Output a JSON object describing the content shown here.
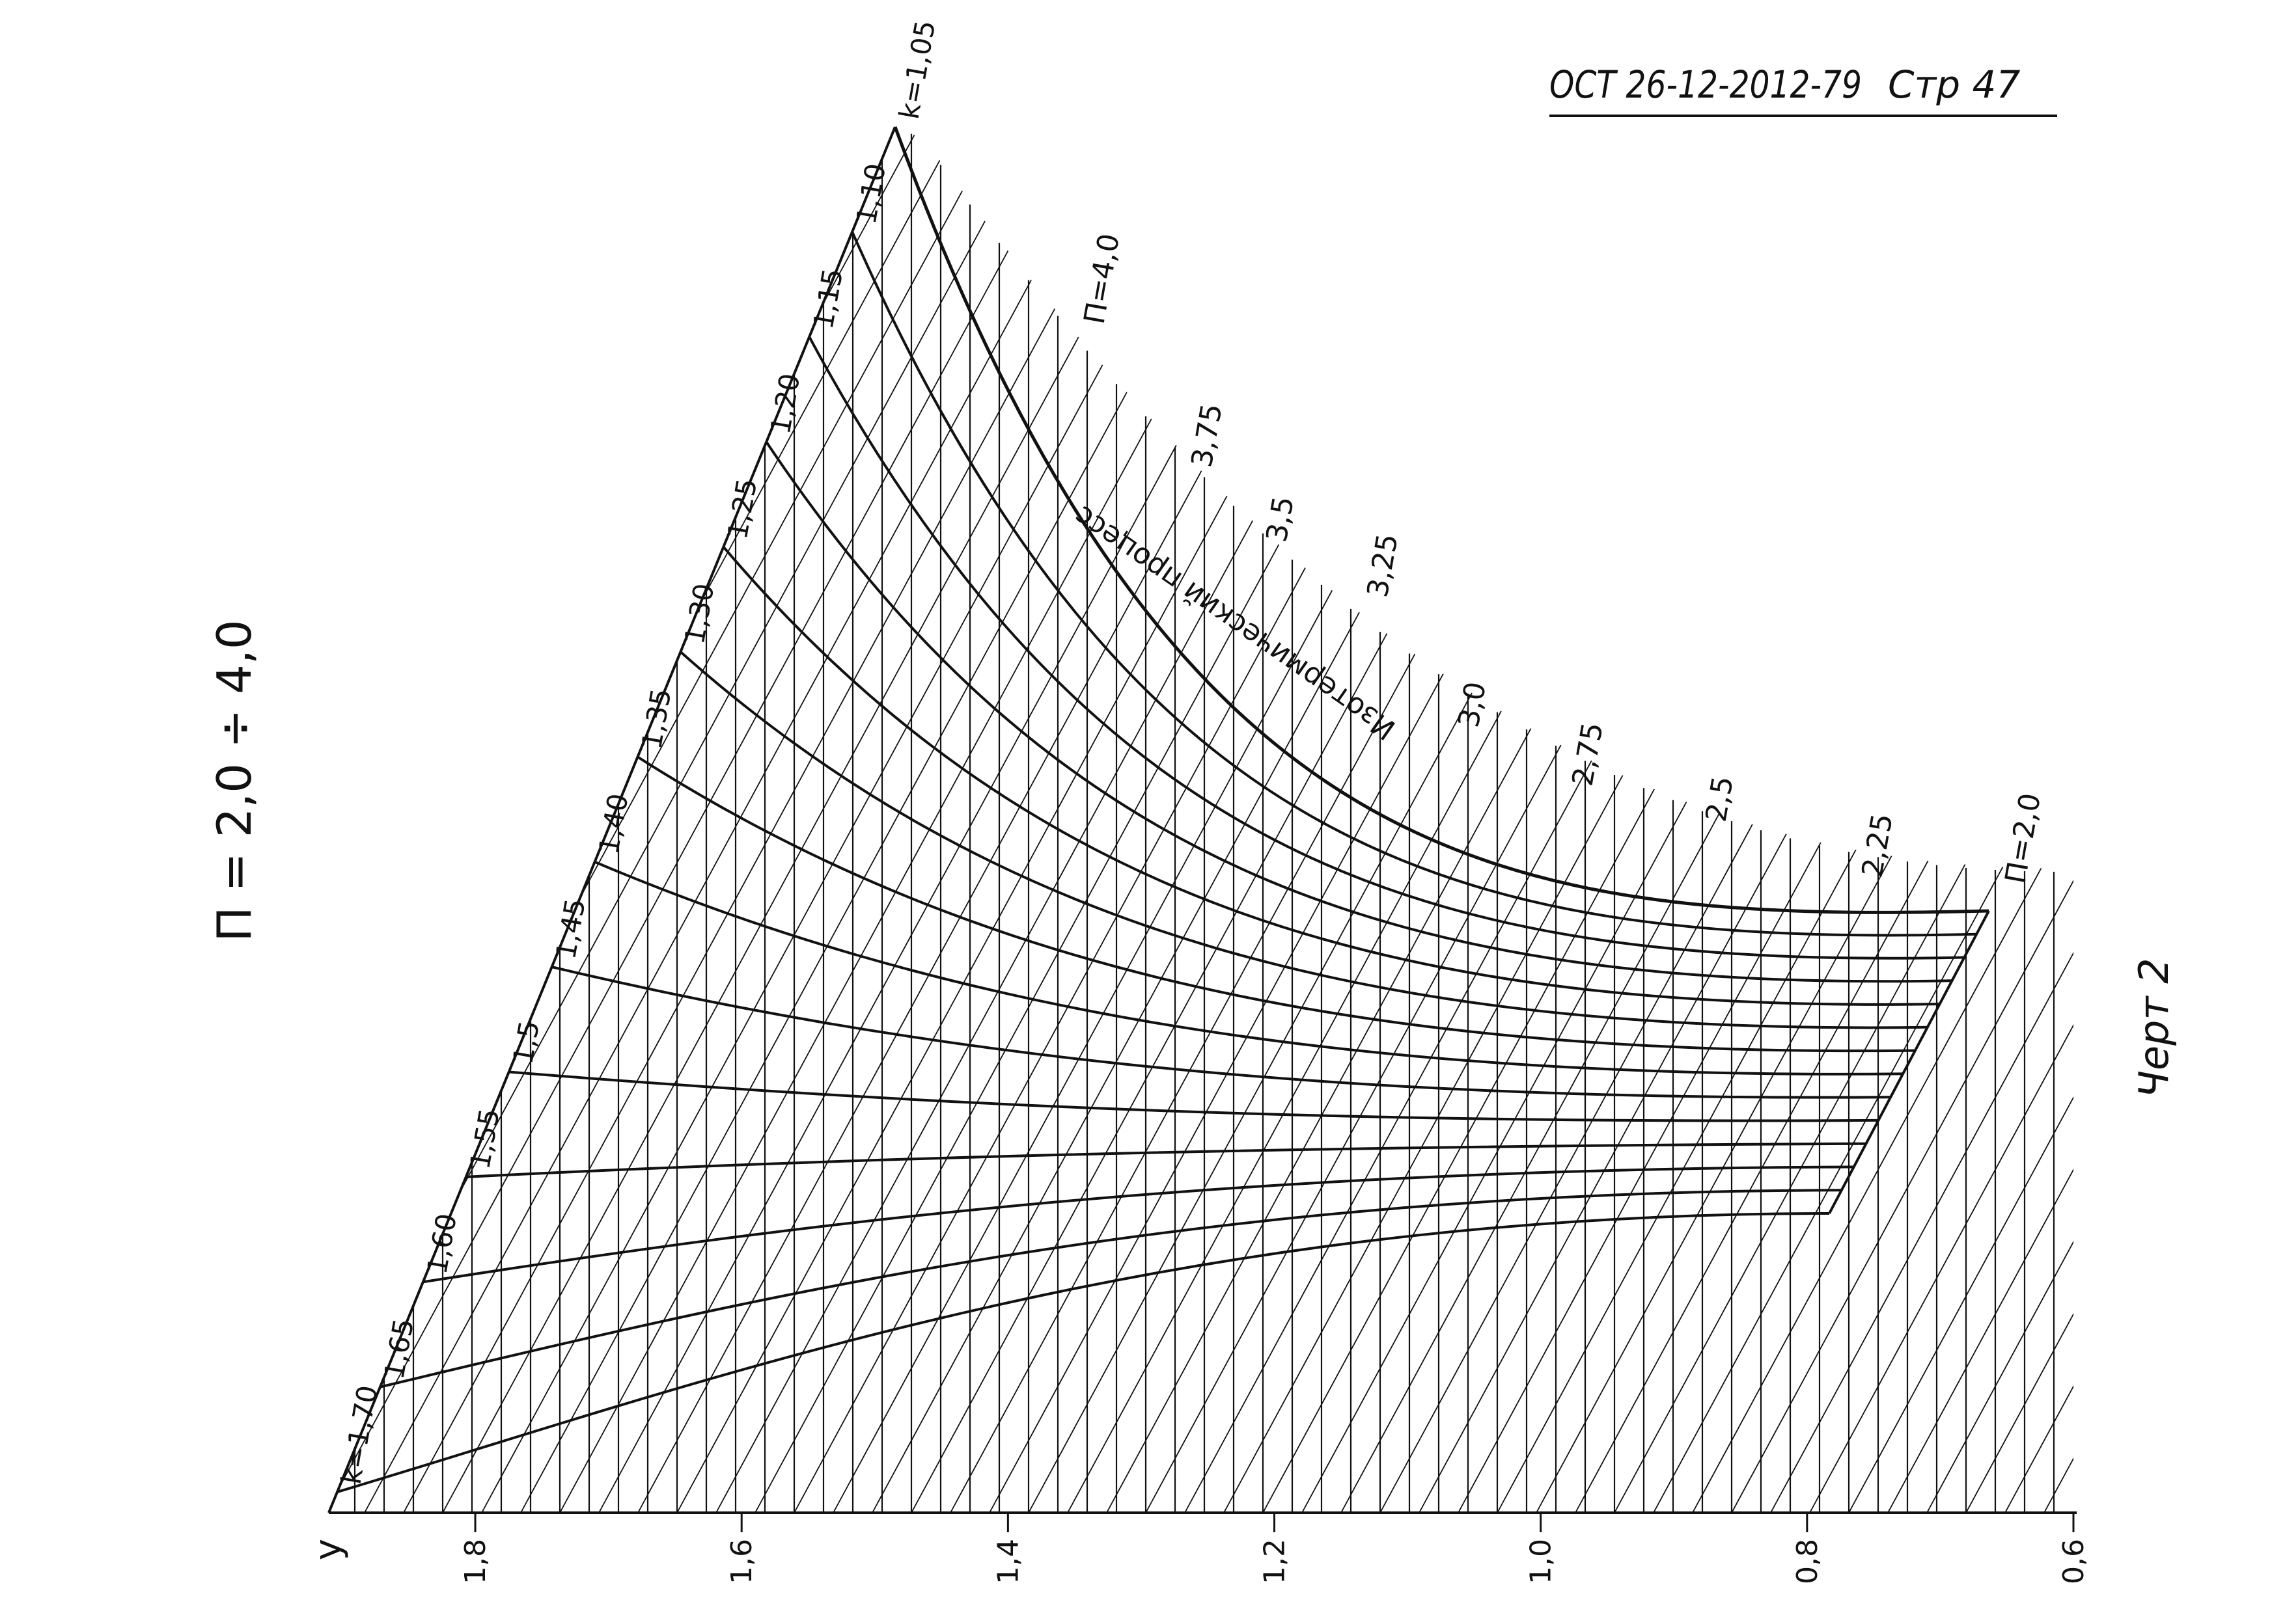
{
  "header": {
    "doc_ref": "ОСТ 26-12-2012-79",
    "page_ref": "Стр 47"
  },
  "title": "П = 2,0 ÷ 4,0",
  "caption": "Черт 2",
  "annotation": "Изотермический процесс",
  "chart_data": {
    "type": "line",
    "title": "П = 2,0 ÷ 4,0",
    "xlabel": "y",
    "x_ticks": [
      "1,8",
      "1,6",
      "1,4",
      "1,2",
      "1,0",
      "0,8",
      "0,6"
    ],
    "x_tick_values": [
      1.8,
      1.6,
      1.4,
      1.2,
      1.0,
      0.8,
      0.6
    ],
    "xlim": [
      1.91,
      0.6
    ],
    "k_labels": [
      "k=1,05",
      "1,10",
      "1,15",
      "1,20",
      "1,25",
      "1,30",
      "1,35",
      "1,40",
      "1,45",
      "1,5",
      "1,55",
      "1,60",
      "1,65",
      "k=1,70"
    ],
    "k_values": [
      1.05,
      1.1,
      1.15,
      1.2,
      1.25,
      1.3,
      1.35,
      1.4,
      1.45,
      1.5,
      1.55,
      1.6,
      1.65,
      1.7
    ],
    "pi_labels": [
      "П=4,0",
      "3,75",
      "3,5",
      "3,25",
      "3,0",
      "2,75",
      "2,5",
      "2,25",
      "П=2,0"
    ],
    "pi_values": [
      4.0,
      3.75,
      3.5,
      3.25,
      3.0,
      2.75,
      2.5,
      2.25,
      2.0
    ],
    "y_at_boundary": [
      1.5,
      1.43,
      1.36,
      1.29,
      1.21,
      1.15,
      1.06,
      0.97,
      0.88,
      0.76
    ],
    "grid": true
  },
  "colors": {
    "ink": "#111111",
    "paper": "#ffffff"
  }
}
